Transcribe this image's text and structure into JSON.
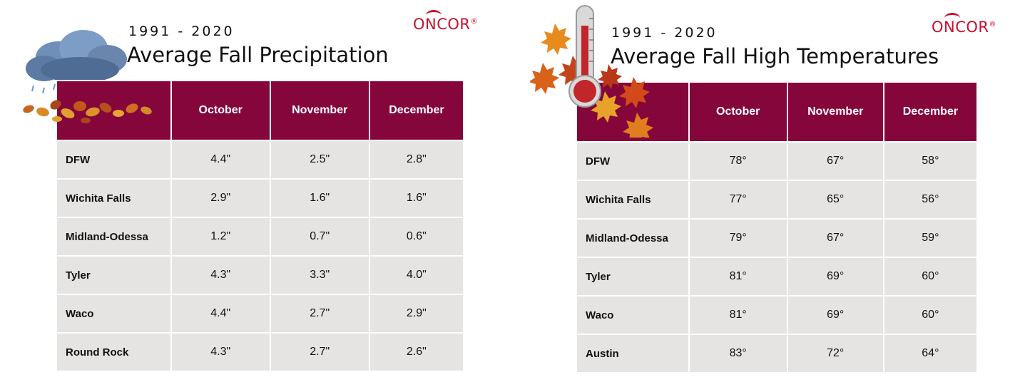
{
  "precipitation": {
    "years": "1991 - 2020",
    "title": "Average Fall Precipitation",
    "logo": "ONCOR",
    "columns": [
      "October",
      "November",
      "December"
    ],
    "rows": [
      {
        "city": "DFW",
        "values": [
          "4.4\"",
          "2.5\"",
          "2.8\""
        ]
      },
      {
        "city": "Wichita Falls",
        "values": [
          "2.9\"",
          "1.6\"",
          "1.6\""
        ]
      },
      {
        "city": "Midland-Odessa",
        "values": [
          "1.2\"",
          "0.7\"",
          "0.6\""
        ]
      },
      {
        "city": "Tyler",
        "values": [
          "4.3\"",
          "3.3\"",
          "4.0\""
        ]
      },
      {
        "city": "Waco",
        "values": [
          "4.4\"",
          "2.7\"",
          "2.9\""
        ]
      },
      {
        "city": "Round Rock",
        "values": [
          "4.3\"",
          "2.7\"",
          "2.6\""
        ]
      }
    ]
  },
  "temperature": {
    "years": "1991 - 2020",
    "title": "Average Fall High Temperatures",
    "logo": "ONCOR",
    "columns": [
      "October",
      "November",
      "December"
    ],
    "rows": [
      {
        "city": "DFW",
        "values": [
          "78°",
          "67°",
          "58°"
        ]
      },
      {
        "city": "Wichita Falls",
        "values": [
          "77°",
          "65°",
          "56°"
        ]
      },
      {
        "city": "Midland-Odessa",
        "values": [
          "79°",
          "67°",
          "59°"
        ]
      },
      {
        "city": "Tyler",
        "values": [
          "81°",
          "69°",
          "60°"
        ]
      },
      {
        "city": "Waco",
        "values": [
          "81°",
          "69°",
          "60°"
        ]
      },
      {
        "city": "Austin",
        "values": [
          "83°",
          "72°",
          "64°"
        ]
      }
    ]
  },
  "colors": {
    "header": "#85063a",
    "cell": "#e6e4e2",
    "logo": "#c8102e"
  },
  "icons": [
    "rain-cloud-icon",
    "fall-leaves-icon",
    "thermometer-icon",
    "maple-leaf-icon"
  ]
}
